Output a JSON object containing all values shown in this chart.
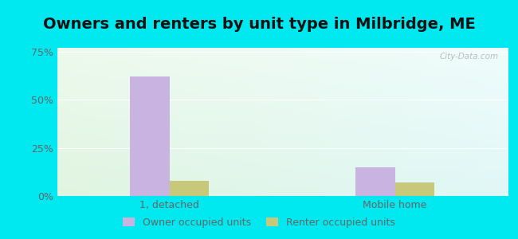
{
  "title": "Owners and renters by unit type in Milbridge, ME",
  "categories": [
    "1, detached",
    "Mobile home"
  ],
  "owner_values": [
    62,
    15
  ],
  "renter_values": [
    8,
    7
  ],
  "owner_color": "#c9b3e0",
  "renter_color": "#c8c87a",
  "ylim": [
    0,
    75
  ],
  "yticks": [
    0,
    25,
    50,
    75
  ],
  "ytick_labels": [
    "0%",
    "25%",
    "50%",
    "75%"
  ],
  "bar_width": 0.35,
  "group_positions": [
    1.0,
    3.0
  ],
  "legend_labels": [
    "Owner occupied units",
    "Renter occupied units"
  ],
  "watermark": "City-Data.com",
  "bg_color_topleft": "#dff2e0",
  "bg_color_topright": "#d0f5f5",
  "bg_color_bottomleft": "#eaf8ea",
  "bg_color_bottomright": "#e8fafa",
  "outer_background_color": "#00e8f0",
  "title_fontsize": 14,
  "axis_fontsize": 9,
  "legend_fontsize": 9,
  "tick_color": "#666666",
  "grid_color": "#e8e8e8"
}
